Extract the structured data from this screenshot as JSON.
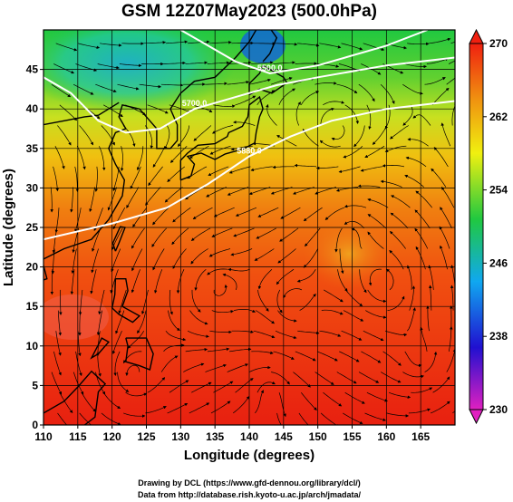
{
  "title": "GSM 12Z07May2023 (500.0hPa)",
  "xaxis": {
    "label": "Longitude (degrees)",
    "min": 110,
    "max": 170,
    "ticks": [
      110,
      115,
      120,
      125,
      130,
      135,
      140,
      145,
      150,
      155,
      160,
      165
    ]
  },
  "yaxis": {
    "label": "Latitude (degrees)",
    "min": 0,
    "max": 50,
    "ticks": [
      0,
      5,
      10,
      15,
      20,
      25,
      30,
      35,
      40,
      45
    ]
  },
  "colorbar": {
    "min": 230,
    "max": 270,
    "ticks": [
      230,
      238,
      246,
      254,
      262,
      270
    ],
    "colors": [
      "#e020c0",
      "#2010d0",
      "#10a8f0",
      "#20c840",
      "#f0f010",
      "#f09010",
      "#f02010"
    ]
  },
  "contours": [
    {
      "label": "5880.0",
      "points": [
        [
          110,
          23.5
        ],
        [
          120,
          25.5
        ],
        [
          128,
          27.5
        ],
        [
          134,
          30.5
        ],
        [
          140,
          34
        ],
        [
          146,
          36.5
        ],
        [
          152,
          38.5
        ],
        [
          160,
          40
        ],
        [
          170,
          41
        ]
      ]
    },
    {
      "label": "5700.0",
      "points": [
        [
          110,
          44
        ],
        [
          114,
          42
        ],
        [
          118,
          38.5
        ],
        [
          122,
          37
        ],
        [
          127,
          37.5
        ],
        [
          132,
          40
        ],
        [
          138,
          41.5
        ],
        [
          144,
          43
        ],
        [
          150,
          44
        ],
        [
          160,
          45.5
        ],
        [
          170,
          46.5
        ]
      ]
    },
    {
      "label": "5500.0",
      "points": [
        [
          130,
          50
        ],
        [
          134,
          48
        ],
        [
          138,
          46
        ],
        [
          143,
          44.5
        ],
        [
          150,
          45.5
        ],
        [
          160,
          48
        ],
        [
          166,
          50
        ]
      ]
    }
  ],
  "contour_labels_shown": [
    "5880.0",
    "5700.0",
    "5500.0"
  ],
  "credits": {
    "line1": "Drawing by DCL (https://www.gfd-dennou.org/library/dcl/)",
    "line2": "Data from http://database.rish.kyoto-u.ac.jp/arch/jmadata/"
  }
}
